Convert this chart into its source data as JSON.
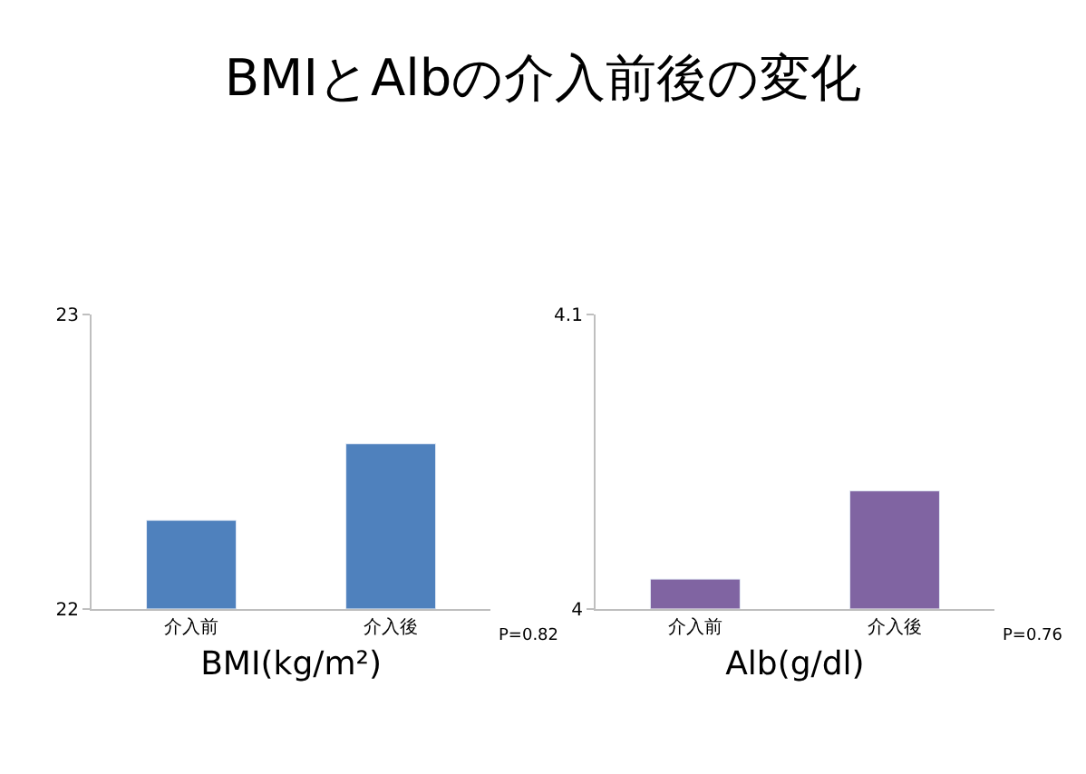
{
  "chart_data": [
    {
      "type": "bar",
      "title": "BMIとAlbの介入前後の変化",
      "xlabel": "BMI(kg/m²)",
      "categories": [
        "介入前",
        "介入後"
      ],
      "values": [
        22.3,
        22.56
      ],
      "color": "#4f81bd",
      "ylim": [
        22,
        23
      ],
      "yticks": [
        22,
        23
      ],
      "annotations": [
        "P=0.82"
      ]
    },
    {
      "type": "bar",
      "xlabel": "Alb(g/dl)",
      "categories": [
        "介入前",
        "介入後"
      ],
      "values": [
        4.01,
        4.04
      ],
      "color": "#8064a2",
      "ylim": [
        4,
        4.1
      ],
      "yticks": [
        4,
        4.1
      ],
      "annotations": [
        "P=0.76"
      ]
    }
  ]
}
